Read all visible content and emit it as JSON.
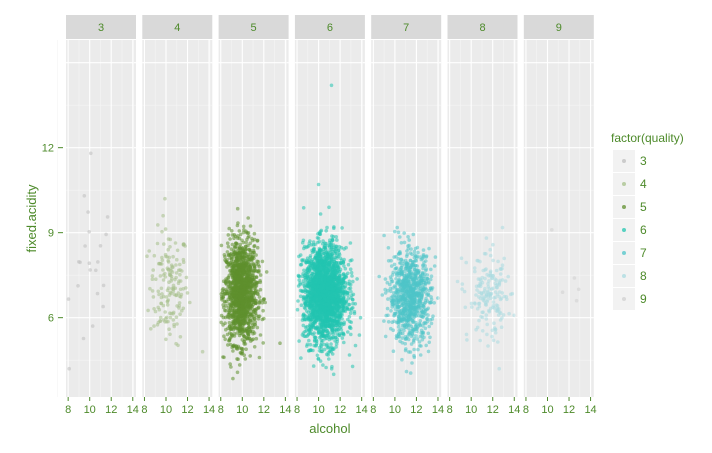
{
  "chart_data": {
    "type": "scatter",
    "facet_by": "quality",
    "xlabel": "alcohol",
    "ylabel": "fixed.acidity",
    "xlim": [
      7.8,
      14.3
    ],
    "ylim": [
      3.2,
      15.8
    ],
    "x_ticks": [
      8,
      10,
      12,
      14
    ],
    "y_ticks": [
      6,
      9,
      12
    ],
    "grid": true,
    "legend": {
      "title": "factor(quality)",
      "position": "right",
      "entries": [
        "3",
        "4",
        "5",
        "6",
        "7",
        "8",
        "9"
      ]
    },
    "colors": {
      "3": "#bdbdbd",
      "4": "#a6c08a",
      "5": "#5f8f2e",
      "6": "#23c5b0",
      "7": "#4ec4c8",
      "8": "#a9dbe0",
      "9": "#d0d0d0"
    },
    "panels": [
      {
        "quality": "3",
        "n": 20,
        "x_center": 10.3,
        "x_sd": 1.1,
        "y_center": 7.5,
        "y_sd": 1.6,
        "extremes": [
          [
            10.1,
            11.8
          ],
          [
            8.1,
            4.2
          ],
          [
            9.5,
            10.3
          ]
        ]
      },
      {
        "quality": "4",
        "n": 160,
        "x_center": 10.3,
        "x_sd": 0.9,
        "y_center": 7.1,
        "y_sd": 1.0,
        "extremes": [
          [
            9.9,
            10.2
          ],
          [
            13.4,
            4.8
          ]
        ]
      },
      {
        "quality": "5",
        "n": 1450,
        "x_center": 9.9,
        "x_sd": 0.75,
        "y_center": 6.9,
        "y_sd": 0.9,
        "extremes": [
          [
            8.3,
            4.6
          ],
          [
            13.5,
            5.1
          ]
        ]
      },
      {
        "quality": "6",
        "n": 2200,
        "x_center": 10.6,
        "x_sd": 1.0,
        "y_center": 6.85,
        "y_sd": 0.85,
        "extremes": [
          [
            11.2,
            14.2
          ],
          [
            10.0,
            10.7
          ],
          [
            11.4,
            4.0
          ]
        ]
      },
      {
        "quality": "7",
        "n": 880,
        "x_center": 11.4,
        "x_sd": 0.95,
        "y_center": 6.75,
        "y_sd": 0.8,
        "extremes": [
          [
            9.0,
            8.9
          ],
          [
            11.8,
            4.6
          ]
        ]
      },
      {
        "quality": "8",
        "n": 175,
        "x_center": 11.7,
        "x_sd": 1.0,
        "y_center": 6.7,
        "y_sd": 0.75,
        "extremes": [
          [
            9.1,
            8.1
          ],
          [
            12.6,
            4.2
          ]
        ]
      },
      {
        "quality": "9",
        "n": 5,
        "points": [
          [
            10.4,
            9.1
          ],
          [
            12.5,
            7.4
          ],
          [
            12.9,
            7.0
          ],
          [
            12.7,
            6.6
          ],
          [
            11.4,
            6.9
          ]
        ]
      }
    ]
  }
}
